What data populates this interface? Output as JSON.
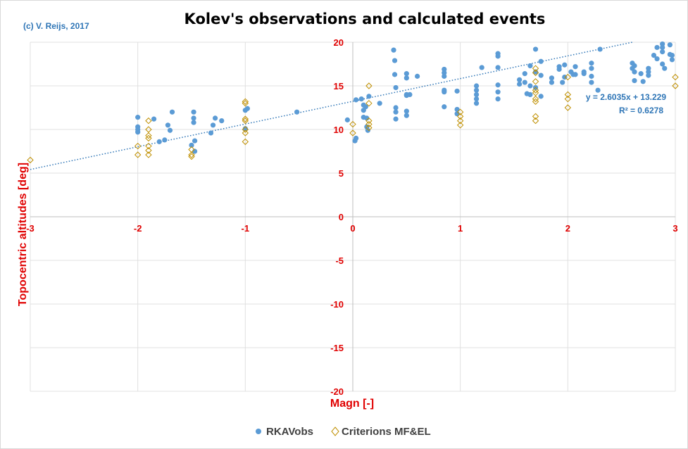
{
  "copyright": "(c) V. Reijs, 2017",
  "chart_data": {
    "type": "scatter",
    "title": "Kolev's observations and calculated events",
    "xlabel": "Magn [-]",
    "ylabel": "Topocentric altitudes [deg]",
    "xlim": [
      -3,
      3
    ],
    "ylim": [
      -20,
      20
    ],
    "x_ticks": [
      -3,
      -2,
      -1,
      0,
      1,
      2,
      3
    ],
    "y_ticks": [
      -20,
      -15,
      -10,
      -5,
      0,
      5,
      10,
      15,
      20
    ],
    "x_tick_labels": [
      "-3",
      "-2",
      "-1",
      "0",
      "1",
      "2",
      "3"
    ],
    "y_tick_labels": [
      "-20",
      "-15",
      "-10",
      "-5",
      "0",
      "5",
      "10",
      "15",
      "20"
    ],
    "grid": true,
    "legend_position": "bottom",
    "colors": {
      "RKAVobs": "#5b9bd5",
      "CriterionsMF&EL": "#bf8f00",
      "trend": "#2e75b6",
      "axis_text": "#e00000"
    },
    "series": [
      {
        "name": "RKAVobs",
        "marker": "circle",
        "points": [
          [
            -2.0,
            11.4
          ],
          [
            -2.0,
            10.3
          ],
          [
            -2.0,
            10.0
          ],
          [
            -2.0,
            9.7
          ],
          [
            -1.85,
            11.2
          ],
          [
            -1.8,
            8.6
          ],
          [
            -1.75,
            8.8
          ],
          [
            -1.72,
            10.5
          ],
          [
            -1.7,
            9.9
          ],
          [
            -1.68,
            12.0
          ],
          [
            -1.5,
            8.2
          ],
          [
            -1.48,
            12.0
          ],
          [
            -1.48,
            11.3
          ],
          [
            -1.48,
            10.8
          ],
          [
            -1.47,
            8.7
          ],
          [
            -1.47,
            7.5
          ],
          [
            -1.32,
            9.6
          ],
          [
            -1.3,
            10.5
          ],
          [
            -1.28,
            11.3
          ],
          [
            -1.22,
            11.0
          ],
          [
            -1.0,
            12.2
          ],
          [
            -1.0,
            10.1
          ],
          [
            -0.98,
            12.4
          ],
          [
            -0.52,
            12.0
          ],
          [
            -0.05,
            11.1
          ],
          [
            0.02,
            8.7
          ],
          [
            0.03,
            9.0
          ],
          [
            0.03,
            13.4
          ],
          [
            0.08,
            13.5
          ],
          [
            0.1,
            12.8
          ],
          [
            0.1,
            12.2
          ],
          [
            0.1,
            11.4
          ],
          [
            0.12,
            12.6
          ],
          [
            0.13,
            11.3
          ],
          [
            0.13,
            10.3
          ],
          [
            0.14,
            9.9
          ],
          [
            0.15,
            13.8
          ],
          [
            0.25,
            13.0
          ],
          [
            0.38,
            19.1
          ],
          [
            0.39,
            17.9
          ],
          [
            0.39,
            16.3
          ],
          [
            0.4,
            14.8
          ],
          [
            0.4,
            12.5
          ],
          [
            0.4,
            12.0
          ],
          [
            0.4,
            11.2
          ],
          [
            0.5,
            16.4
          ],
          [
            0.5,
            15.9
          ],
          [
            0.5,
            14.0
          ],
          [
            0.5,
            13.9
          ],
          [
            0.5,
            12.1
          ],
          [
            0.5,
            11.6
          ],
          [
            0.53,
            14.0
          ],
          [
            0.6,
            16.1
          ],
          [
            0.85,
            16.9
          ],
          [
            0.85,
            16.5
          ],
          [
            0.85,
            16.1
          ],
          [
            0.85,
            14.5
          ],
          [
            0.85,
            14.3
          ],
          [
            0.85,
            12.6
          ],
          [
            0.97,
            14.4
          ],
          [
            0.97,
            12.3
          ],
          [
            0.97,
            11.8
          ],
          [
            1.15,
            15.0
          ],
          [
            1.15,
            14.5
          ],
          [
            1.15,
            14.0
          ],
          [
            1.15,
            13.5
          ],
          [
            1.15,
            13.0
          ],
          [
            1.2,
            17.1
          ],
          [
            1.35,
            18.7
          ],
          [
            1.35,
            18.4
          ],
          [
            1.35,
            17.1
          ],
          [
            1.35,
            15.1
          ],
          [
            1.35,
            14.3
          ],
          [
            1.35,
            13.5
          ],
          [
            1.55,
            15.7
          ],
          [
            1.55,
            15.2
          ],
          [
            1.6,
            16.4
          ],
          [
            1.6,
            15.4
          ],
          [
            1.62,
            14.1
          ],
          [
            1.65,
            17.3
          ],
          [
            1.65,
            15.0
          ],
          [
            1.65,
            14.0
          ],
          [
            1.7,
            19.2
          ],
          [
            1.7,
            16.6
          ],
          [
            1.7,
            14.8
          ],
          [
            1.75,
            17.8
          ],
          [
            1.75,
            16.2
          ],
          [
            1.75,
            13.8
          ],
          [
            1.85,
            15.9
          ],
          [
            1.85,
            15.4
          ],
          [
            1.92,
            17.2
          ],
          [
            1.92,
            16.9
          ],
          [
            1.95,
            15.4
          ],
          [
            1.97,
            17.4
          ],
          [
            1.97,
            16.0
          ],
          [
            2.03,
            16.6
          ],
          [
            2.05,
            16.3
          ],
          [
            2.07,
            17.2
          ],
          [
            2.07,
            16.3
          ],
          [
            2.15,
            16.6
          ],
          [
            2.15,
            16.4
          ],
          [
            2.22,
            17.6
          ],
          [
            2.22,
            17.0
          ],
          [
            2.22,
            16.1
          ],
          [
            2.22,
            15.4
          ],
          [
            2.28,
            14.5
          ],
          [
            2.3,
            19.2
          ],
          [
            2.6,
            17.6
          ],
          [
            2.6,
            17.0
          ],
          [
            2.62,
            17.3
          ],
          [
            2.62,
            16.6
          ],
          [
            2.62,
            15.6
          ],
          [
            2.68,
            16.4
          ],
          [
            2.7,
            15.5
          ],
          [
            2.75,
            17.0
          ],
          [
            2.75,
            16.6
          ],
          [
            2.75,
            16.2
          ],
          [
            2.8,
            18.5
          ],
          [
            2.83,
            19.4
          ],
          [
            2.83,
            18.1
          ],
          [
            2.88,
            19.8
          ],
          [
            2.88,
            19.4
          ],
          [
            2.88,
            18.9
          ],
          [
            2.88,
            17.5
          ],
          [
            2.9,
            17.0
          ],
          [
            2.95,
            19.7
          ],
          [
            2.95,
            18.6
          ],
          [
            2.97,
            18.5
          ],
          [
            2.97,
            18.0
          ]
        ]
      },
      {
        "name": "Criterions MF&EL",
        "marker": "diamond",
        "points": [
          [
            -3.0,
            6.5
          ],
          [
            -2.0,
            8.1
          ],
          [
            -2.0,
            7.1
          ],
          [
            -1.9,
            11.0
          ],
          [
            -1.9,
            10.0
          ],
          [
            -1.9,
            9.3
          ],
          [
            -1.9,
            9.0
          ],
          [
            -1.9,
            8.1
          ],
          [
            -1.9,
            7.6
          ],
          [
            -1.9,
            7.1
          ],
          [
            -1.5,
            7.7
          ],
          [
            -1.5,
            7.1
          ],
          [
            -1.5,
            6.9
          ],
          [
            -1.0,
            13.2
          ],
          [
            -1.0,
            13.0
          ],
          [
            -1.0,
            11.2
          ],
          [
            -1.0,
            11.0
          ],
          [
            -1.0,
            10.0
          ],
          [
            -1.0,
            9.6
          ],
          [
            -1.0,
            8.6
          ],
          [
            0.0,
            10.6
          ],
          [
            0.0,
            9.6
          ],
          [
            0.15,
            15.0
          ],
          [
            0.15,
            13.0
          ],
          [
            0.15,
            11.0
          ],
          [
            0.15,
            10.6
          ],
          [
            0.15,
            10.2
          ],
          [
            1.0,
            12.0
          ],
          [
            1.0,
            11.5
          ],
          [
            1.0,
            11.0
          ],
          [
            1.0,
            10.5
          ],
          [
            1.7,
            17.0
          ],
          [
            1.7,
            16.5
          ],
          [
            1.7,
            15.5
          ],
          [
            1.7,
            14.5
          ],
          [
            1.7,
            14.2
          ],
          [
            1.7,
            13.5
          ],
          [
            1.7,
            13.2
          ],
          [
            1.7,
            11.5
          ],
          [
            1.7,
            11.0
          ],
          [
            2.0,
            16.0
          ],
          [
            2.0,
            14.0
          ],
          [
            2.0,
            13.5
          ],
          [
            2.0,
            12.5
          ],
          [
            3.0,
            16.0
          ],
          [
            3.0,
            15.0
          ]
        ]
      }
    ],
    "trendline": {
      "series": "RKAVobs",
      "type": "linear",
      "slope": 2.6035,
      "intercept": 13.229,
      "equation": "y = 2.6035x + 13.229",
      "r_squared": "R² = 0.6278"
    }
  }
}
